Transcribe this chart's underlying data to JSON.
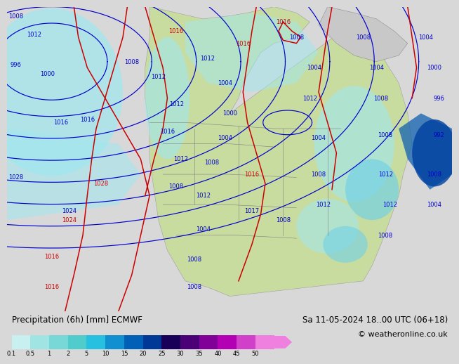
{
  "title_left": "Precipitation (6h) [mm] ECMWF",
  "title_right": "Sa 11-05-2024 18..00 UTC (06+18)",
  "copyright": "© weatheronline.co.uk",
  "colorbar_levels": [
    0.1,
    0.5,
    1,
    2,
    5,
    10,
    15,
    20,
    25,
    30,
    35,
    40,
    45,
    50
  ],
  "colorbar_colors": [
    "#c8f0f0",
    "#a0e4e4",
    "#78d8d8",
    "#50cccc",
    "#28c0e0",
    "#1090d0",
    "#0060b8",
    "#003898",
    "#180058",
    "#4c0078",
    "#800098",
    "#b400b4",
    "#d040c8",
    "#f080e0"
  ],
  "bg_color": "#d8d8d8",
  "ocean_color": "#e8e8e8",
  "land_color": "#c8dca0",
  "precip_light": "#a0e8f0",
  "precip_med": "#50c8e0",
  "precip_dark": "#1890c8",
  "precip_darkblue": "#0040a0",
  "label_fontsize": 8.5,
  "copyright_fontsize": 8,
  "isobar_fontsize": 6
}
